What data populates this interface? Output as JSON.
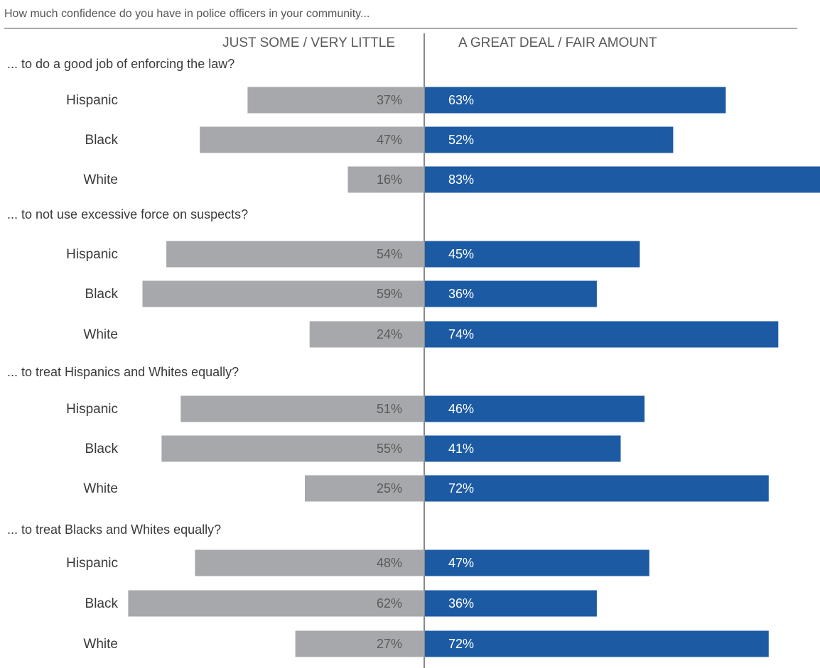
{
  "chart_data": {
    "type": "bar",
    "title": "How much confidence do you have in police officers in your community...",
    "series": [
      {
        "name": "JUST SOME / VERY LITTLE",
        "color": "#a6a8ab",
        "side": "left"
      },
      {
        "name": "A GREAT DEAL / FAIR AMOUNT",
        "color": "#1c5aa3",
        "side": "right"
      }
    ],
    "groups": [
      {
        "question": "... to do a good job of enforcing the law?",
        "rows": [
          {
            "category": "Hispanic",
            "left": 37,
            "right": 63,
            "left_label": "37%",
            "right_label": "63%"
          },
          {
            "category": "Black",
            "left": 47,
            "right": 52,
            "left_label": "47%",
            "right_label": "52%"
          },
          {
            "category": "White",
            "left": 16,
            "right": 83,
            "left_label": "16%",
            "right_label": "83%"
          }
        ]
      },
      {
        "question": "... to not use excessive force on suspects?",
        "rows": [
          {
            "category": "Hispanic",
            "left": 54,
            "right": 45,
            "left_label": "54%",
            "right_label": "45%"
          },
          {
            "category": "Black",
            "left": 59,
            "right": 36,
            "left_label": "59%",
            "right_label": "36%"
          },
          {
            "category": "White",
            "left": 24,
            "right": 74,
            "left_label": "24%",
            "right_label": "74%"
          }
        ]
      },
      {
        "question": "... to treat Hispanics and Whites equally?",
        "rows": [
          {
            "category": "Hispanic",
            "left": 51,
            "right": 46,
            "left_label": "51%",
            "right_label": "46%"
          },
          {
            "category": "Black",
            "left": 55,
            "right": 41,
            "left_label": "55%",
            "right_label": "41%"
          },
          {
            "category": "White",
            "left": 25,
            "right": 72,
            "left_label": "25%",
            "right_label": "72%"
          }
        ]
      },
      {
        "question": "... to treat Blacks and Whites equally?",
        "rows": [
          {
            "category": "Hispanic",
            "left": 48,
            "right": 47,
            "left_label": "48%",
            "right_label": "47%"
          },
          {
            "category": "Black",
            "left": 62,
            "right": 36,
            "left_label": "62%",
            "right_label": "36%"
          },
          {
            "category": "White",
            "left": 27,
            "right": 72,
            "left_label": "27%",
            "right_label": "72%"
          }
        ]
      }
    ],
    "grid": false,
    "legend": "top"
  }
}
